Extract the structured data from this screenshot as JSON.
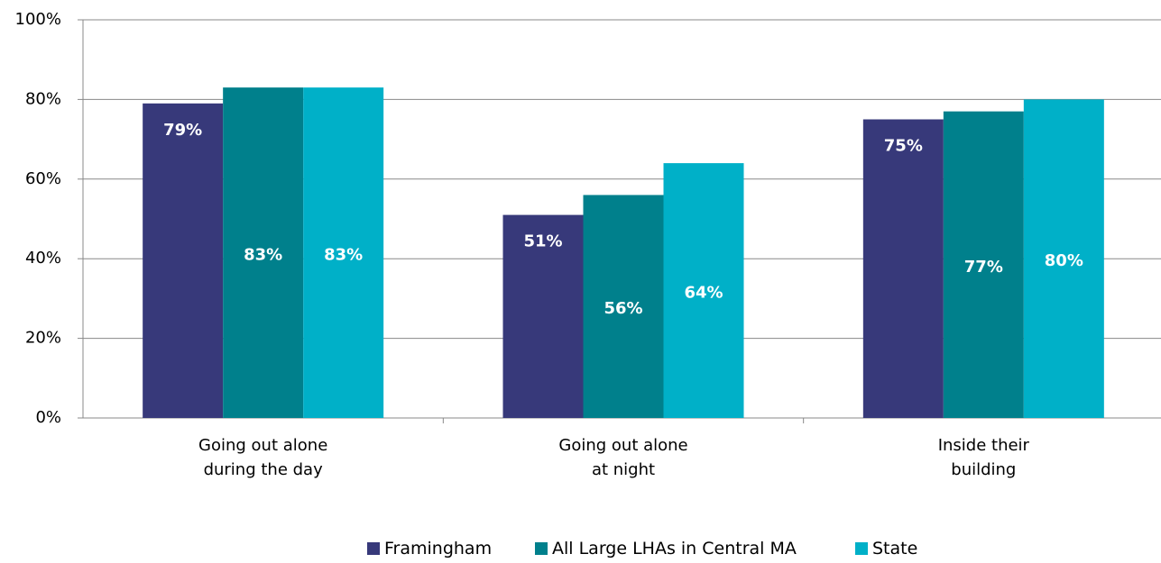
{
  "chart_data": {
    "type": "bar",
    "categories": [
      "Going out alone during the day",
      "Going out alone at night",
      "Inside their building"
    ],
    "series": [
      {
        "name": "Framingham",
        "color": "#37397a",
        "values": [
          79,
          51,
          75
        ],
        "value_labels": [
          "79%",
          "51%",
          "75%"
        ],
        "label_position": "inside_end"
      },
      {
        "name": "All Large LHAs in Central MA",
        "color": "#00808c",
        "values": [
          83,
          56,
          77
        ],
        "value_labels": [
          "83%",
          "56%",
          "77%"
        ],
        "label_position": "center"
      },
      {
        "name": "State",
        "color": "#00b0c8",
        "values": [
          83,
          64,
          80
        ],
        "value_labels": [
          "83%",
          "64%",
          "80%"
        ],
        "label_position": "center"
      }
    ],
    "ylim": [
      0,
      100
    ],
    "yticks": [
      {
        "value": 0,
        "label": "0%"
      },
      {
        "value": 20,
        "label": "20%"
      },
      {
        "value": 40,
        "label": "40%"
      },
      {
        "value": 60,
        "label": "60%"
      },
      {
        "value": 80,
        "label": "80%"
      },
      {
        "value": 100,
        "label": "100%"
      }
    ],
    "grid": true,
    "legend": "bottom"
  }
}
